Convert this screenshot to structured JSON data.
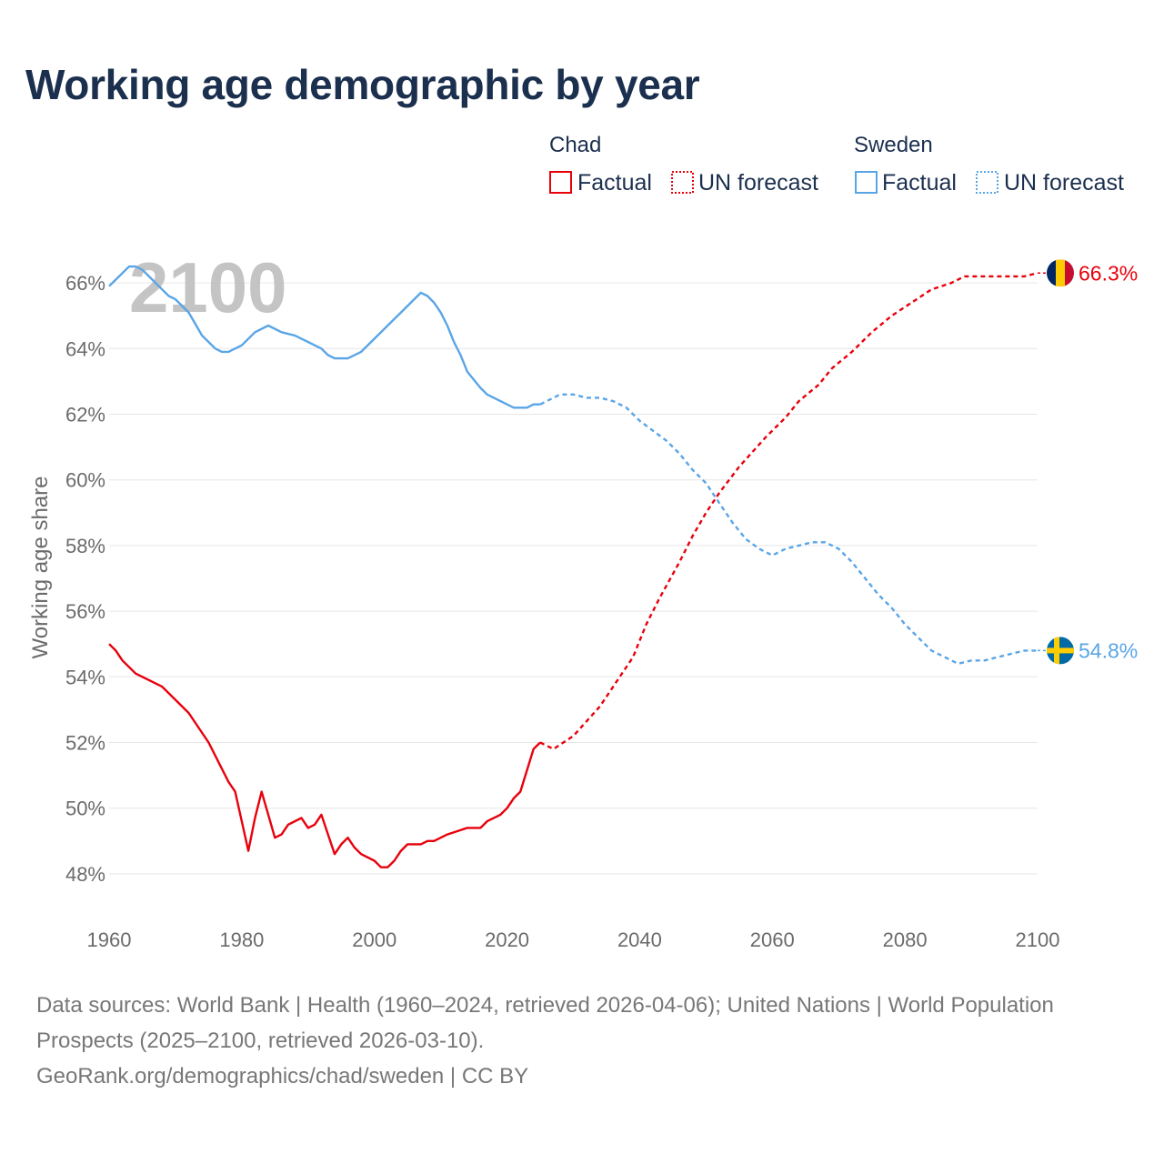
{
  "title": "Working age demographic by year",
  "year_overlay": "2100",
  "legend": {
    "groups": [
      {
        "name": "Chad",
        "factual": "Factual",
        "forecast": "UN forecast",
        "color": "#e8000b"
      },
      {
        "name": "Sweden",
        "factual": "Factual",
        "forecast": "UN forecast",
        "color": "#5aa5e6"
      }
    ]
  },
  "footer": {
    "sources": "Data sources: World Bank | Health (1960–2024, retrieved 2026-04-06); United Nations | World Population Prospects (2025–2100, retrieved 2026-03-10).",
    "credit": "GeoRank.org/demographics/chad/sweden | CC BY"
  },
  "chart_data": {
    "type": "line",
    "title": "Working age demographic by year",
    "xlabel": "",
    "ylabel": "Working age share",
    "xlim": [
      1960,
      2100
    ],
    "ylim": [
      47,
      67
    ],
    "x_ticks": [
      1960,
      1980,
      2000,
      2020,
      2040,
      2060,
      2080,
      2100
    ],
    "y_ticks": [
      48,
      50,
      52,
      54,
      56,
      58,
      60,
      62,
      64,
      66
    ],
    "y_tick_suffix": "%",
    "grid": true,
    "legend_position": "top-right",
    "series": [
      {
        "name": "Chad",
        "color": "#e8000b",
        "end_label": "66.3%",
        "flag": "chad-flag-icon",
        "factual": {
          "x": [
            1960,
            1961,
            1962,
            1964,
            1968,
            1972,
            1975,
            1978,
            1979,
            1981,
            1982,
            1983,
            1985,
            1986,
            1987,
            1989,
            1990,
            1991,
            1992,
            1994,
            1995,
            1996,
            1997,
            1998,
            2000,
            2001,
            2002,
            2003,
            2004,
            2005,
            2007,
            2008,
            2009,
            2011,
            2014,
            2016,
            2017,
            2019,
            2020,
            2021,
            2022,
            2024,
            2025
          ],
          "y": [
            55.0,
            54.8,
            54.5,
            54.1,
            53.7,
            52.9,
            52.0,
            50.8,
            50.5,
            48.7,
            49.7,
            50.5,
            49.1,
            49.2,
            49.5,
            49.7,
            49.4,
            49.5,
            49.8,
            48.6,
            48.9,
            49.1,
            48.8,
            48.6,
            48.4,
            48.2,
            48.2,
            48.4,
            48.7,
            48.9,
            48.9,
            49.0,
            49.0,
            49.2,
            49.4,
            49.4,
            49.6,
            49.8,
            50.0,
            50.3,
            50.5,
            51.8,
            52.0
          ]
        },
        "forecast": {
          "x": [
            2025,
            2027,
            2030,
            2034,
            2039,
            2041,
            2043,
            2046,
            2048,
            2050,
            2052,
            2055,
            2059,
            2062,
            2064,
            2067,
            2069,
            2072,
            2075,
            2078,
            2081,
            2084,
            2087,
            2089,
            2095,
            2098,
            2100
          ],
          "y": [
            52.0,
            51.8,
            52.2,
            53.1,
            54.6,
            55.6,
            56.4,
            57.5,
            58.3,
            59.0,
            59.6,
            60.4,
            61.3,
            61.9,
            62.4,
            62.9,
            63.4,
            63.9,
            64.5,
            65.0,
            65.4,
            65.8,
            66.0,
            66.2,
            66.2,
            66.2,
            66.3
          ]
        }
      },
      {
        "name": "Sweden",
        "color": "#5aa5e6",
        "end_label": "54.8%",
        "flag": "sweden-flag-icon",
        "factual": {
          "x": [
            1960,
            1961,
            1962,
            1963,
            1964,
            1965,
            1966,
            1967,
            1968,
            1969,
            1970,
            1971,
            1972,
            1974,
            1976,
            1977,
            1978,
            1980,
            1982,
            1984,
            1986,
            1988,
            1990,
            1992,
            1993,
            1994,
            1995,
            1996,
            1998,
            2000,
            2002,
            2004,
            2006,
            2007,
            2008,
            2009,
            2010,
            2011,
            2012,
            2013,
            2014,
            2016,
            2017,
            2018,
            2019,
            2020,
            2021,
            2022,
            2023,
            2024,
            2025
          ],
          "y": [
            65.9,
            66.1,
            66.3,
            66.5,
            66.5,
            66.4,
            66.2,
            66.0,
            65.8,
            65.6,
            65.5,
            65.3,
            65.1,
            64.4,
            64.0,
            63.9,
            63.9,
            64.1,
            64.5,
            64.7,
            64.5,
            64.4,
            64.2,
            64.0,
            63.8,
            63.7,
            63.7,
            63.7,
            63.9,
            64.3,
            64.7,
            65.1,
            65.5,
            65.7,
            65.6,
            65.4,
            65.1,
            64.7,
            64.2,
            63.8,
            63.3,
            62.8,
            62.6,
            62.5,
            62.4,
            62.3,
            62.2,
            62.2,
            62.2,
            62.3,
            62.3
          ]
        },
        "forecast": {
          "x": [
            2025,
            2026,
            2028,
            2030,
            2032,
            2034,
            2036,
            2038,
            2040,
            2042,
            2044,
            2046,
            2048,
            2050,
            2052,
            2054,
            2056,
            2058,
            2060,
            2062,
            2064,
            2066,
            2068,
            2070,
            2072,
            2074,
            2076,
            2078,
            2080,
            2082,
            2084,
            2086,
            2088,
            2090,
            2092,
            2094,
            2096,
            2098,
            2100
          ],
          "y": [
            62.3,
            62.4,
            62.6,
            62.6,
            62.5,
            62.5,
            62.4,
            62.2,
            61.8,
            61.5,
            61.2,
            60.8,
            60.3,
            59.9,
            59.3,
            58.7,
            58.2,
            57.9,
            57.7,
            57.9,
            58.0,
            58.1,
            58.1,
            57.9,
            57.5,
            57.0,
            56.5,
            56.1,
            55.6,
            55.2,
            54.8,
            54.6,
            54.4,
            54.5,
            54.5,
            54.6,
            54.7,
            54.8,
            54.8
          ]
        }
      }
    ]
  }
}
